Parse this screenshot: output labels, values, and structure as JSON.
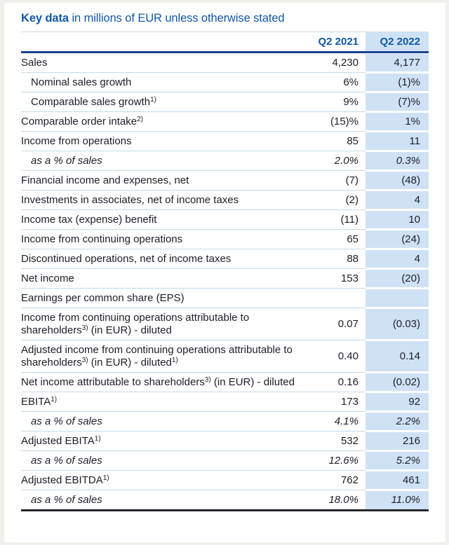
{
  "title": {
    "lead": "Key data",
    "rest": " in millions of EUR unless otherwise stated"
  },
  "colors": {
    "accent_blue": "#1157a7",
    "header_rule_navy": "#1a4390",
    "highlight_column_bg": "#cfe2f5",
    "row_separator": "#c6dae6",
    "bottom_rule": "#26262c",
    "body_text": "#1d1d29"
  },
  "table": {
    "columns": [
      {
        "label": "Q2 2021"
      },
      {
        "label": "Q2 2022"
      }
    ],
    "rows": [
      {
        "parts": [
          {
            "t": "Sales"
          }
        ],
        "v1": "4,230",
        "v2": "4,177"
      },
      {
        "parts": [
          {
            "t": "Nominal sales growth"
          }
        ],
        "indent": true,
        "v1": "6%",
        "v2": "(1)%"
      },
      {
        "parts": [
          {
            "t": "Comparable sales growth"
          },
          {
            "t": "1)",
            "sup": true
          }
        ],
        "indent": true,
        "v1": "9%",
        "v2": "(7)%"
      },
      {
        "parts": [
          {
            "t": "Comparable order intake"
          },
          {
            "t": "2)",
            "sup": true
          }
        ],
        "v1": "(15)%",
        "v2": "1%"
      },
      {
        "parts": [
          {
            "t": "Income from operations"
          }
        ],
        "v1": "85",
        "v2": "11"
      },
      {
        "parts": [
          {
            "t": "as a % of sales"
          }
        ],
        "indent": true,
        "italic": true,
        "v1": "2.0%",
        "v2": "0.3%"
      },
      {
        "parts": [
          {
            "t": "Financial income and expenses, net"
          }
        ],
        "v1": "(7)",
        "v2": "(48)"
      },
      {
        "parts": [
          {
            "t": "Investments in associates, net of income taxes"
          }
        ],
        "v1": "(2)",
        "v2": "4"
      },
      {
        "parts": [
          {
            "t": "Income tax (expense) benefit"
          }
        ],
        "v1": "(11)",
        "v2": "10"
      },
      {
        "parts": [
          {
            "t": "Income from continuing operations"
          }
        ],
        "v1": "65",
        "v2": "(24)"
      },
      {
        "parts": [
          {
            "t": "Discontinued operations, net of income taxes"
          }
        ],
        "v1": "88",
        "v2": "4"
      },
      {
        "parts": [
          {
            "t": "Net income"
          }
        ],
        "v1": "153",
        "v2": "(20)"
      },
      {
        "parts": [
          {
            "t": "Earnings per common share (EPS)"
          }
        ],
        "v1": "",
        "v2": ""
      },
      {
        "parts": [
          {
            "t": "Income from continuing operations attributable to shareholders"
          },
          {
            "t": "3)",
            "sup": true
          },
          {
            "t": " (in EUR) - diluted"
          }
        ],
        "v1": "0.07",
        "v2": "(0.03)"
      },
      {
        "parts": [
          {
            "t": "Adjusted income from continuing operations attributable to shareholders"
          },
          {
            "t": "3)",
            "sup": true
          },
          {
            "t": " (in EUR) - diluted"
          },
          {
            "t": "1)",
            "sup": true
          }
        ],
        "v1": "0.40",
        "v2": "0.14"
      },
      {
        "parts": [
          {
            "t": "Net income attributable to shareholders"
          },
          {
            "t": "3)",
            "sup": true
          },
          {
            "t": " (in EUR) - diluted"
          }
        ],
        "v1": "0.16",
        "v2": "(0.02)"
      },
      {
        "parts": [
          {
            "t": "EBITA"
          },
          {
            "t": "1)",
            "sup": true
          }
        ],
        "v1": "173",
        "v2": "92"
      },
      {
        "parts": [
          {
            "t": "as a % of sales"
          }
        ],
        "indent": true,
        "italic": true,
        "v1": "4.1%",
        "v2": "2.2%"
      },
      {
        "parts": [
          {
            "t": "Adjusted EBITA"
          },
          {
            "t": "1)",
            "sup": true
          }
        ],
        "v1": "532",
        "v2": "216"
      },
      {
        "parts": [
          {
            "t": "as a % of sales"
          }
        ],
        "indent": true,
        "italic": true,
        "v1": "12.6%",
        "v2": "5.2%"
      },
      {
        "parts": [
          {
            "t": "Adjusted EBITDA"
          },
          {
            "t": "1)",
            "sup": true
          }
        ],
        "v1": "762",
        "v2": "461"
      },
      {
        "parts": [
          {
            "t": "as a % of sales"
          }
        ],
        "indent": true,
        "italic": true,
        "v1": "18.0%",
        "v2": "11.0%"
      }
    ]
  }
}
